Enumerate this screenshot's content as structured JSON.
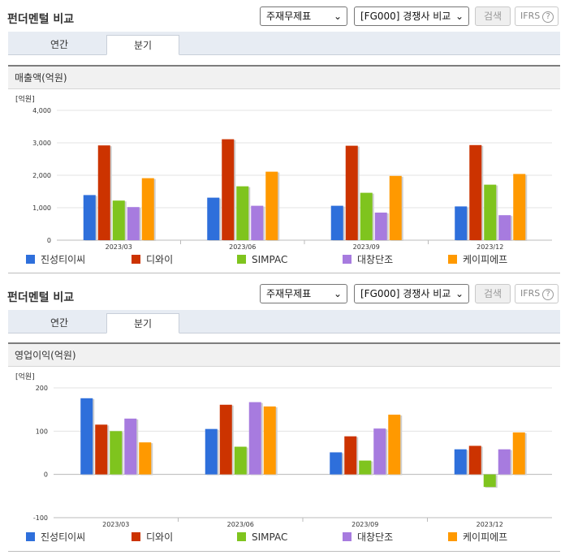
{
  "panels": [
    {
      "title": "펀더멘털 비교",
      "select1": "주재무제표",
      "select2": "[FG000] 경쟁사 비교",
      "search_label": "검색",
      "ifrs_label": "IFRS",
      "tabs": [
        "연간",
        "분기"
      ],
      "active_tab": 1,
      "section_title": "매출액(억원)",
      "unit": "[억원]"
    },
    {
      "title": "펀더멘털 비교",
      "select1": "주재무제표",
      "select2": "[FG000] 경쟁사 비교",
      "search_label": "검색",
      "ifrs_label": "IFRS",
      "tabs": [
        "연간",
        "분기"
      ],
      "active_tab": 1,
      "section_title": "영업이익(억원)",
      "unit": "[억원]"
    }
  ],
  "colors": {
    "series": [
      "#2e6fdb",
      "#cc3300",
      "#7fc41e",
      "#a77bdf",
      "#ff9900"
    ]
  },
  "chart_data": [
    {
      "type": "bar",
      "title": "매출액(억원)",
      "ylabel": "[억원]",
      "categories": [
        "2023/03",
        "2023/06",
        "2023/09",
        "2023/12"
      ],
      "ylim": [
        0,
        4000
      ],
      "yticks": [
        "0",
        "1,000",
        "2,000",
        "3,000",
        "4,000"
      ],
      "ytick_values": [
        0,
        1000,
        2000,
        3000,
        4000
      ],
      "grid": true,
      "legend_position": "bottom",
      "series": [
        {
          "name": "진성티이씨",
          "values": [
            1390,
            1310,
            1060,
            1040
          ]
        },
        {
          "name": "디와이",
          "values": [
            2920,
            3110,
            2910,
            2930
          ]
        },
        {
          "name": "SIMPAC",
          "values": [
            1220,
            1660,
            1460,
            1710
          ]
        },
        {
          "name": "대창단조",
          "values": [
            1020,
            1060,
            850,
            770
          ]
        },
        {
          "name": "케이피에프",
          "values": [
            1910,
            2110,
            1980,
            2040
          ]
        }
      ]
    },
    {
      "type": "bar",
      "title": "영업이익(억원)",
      "ylabel": "[억원]",
      "categories": [
        "2023/03",
        "2023/06",
        "2023/09",
        "2023/12"
      ],
      "ylim": [
        -100,
        200
      ],
      "yticks": [
        "-100",
        "0",
        "100",
        "200"
      ],
      "ytick_values": [
        -100,
        0,
        100,
        200
      ],
      "grid": true,
      "legend_position": "bottom",
      "series": [
        {
          "name": "진성티이씨",
          "values": [
            176,
            105,
            51,
            58
          ]
        },
        {
          "name": "디와이",
          "values": [
            115,
            161,
            88,
            66
          ]
        },
        {
          "name": "SIMPAC",
          "values": [
            100,
            64,
            32,
            -29
          ]
        },
        {
          "name": "대창단조",
          "values": [
            129,
            167,
            106,
            58
          ]
        },
        {
          "name": "케이피에프",
          "values": [
            74,
            157,
            138,
            97
          ]
        }
      ]
    }
  ]
}
